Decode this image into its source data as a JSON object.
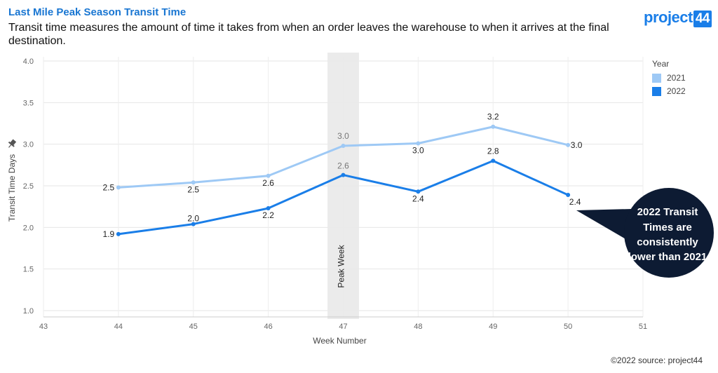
{
  "header": {
    "title": "Last Mile Peak Season Transit Time",
    "subtitle": "Transit time measures the amount of time it takes from when an order leaves the warehouse to when it arrives at the final destination."
  },
  "logo": {
    "text": "project",
    "number": "44"
  },
  "footer": {
    "source": "©2022 source: project44"
  },
  "colors": {
    "accent": "#1976d2",
    "series_2021": "#9ec9f5",
    "series_2022": "#1a7ee8",
    "callout": "#0d1b33"
  },
  "icons": {
    "ylabel_icon": "pin-icon"
  },
  "chart_data": {
    "type": "line",
    "xlabel": "Week Number",
    "ylabel": "Transit Time Days",
    "xlim": [
      43,
      51
    ],
    "ylim": [
      1.0,
      4.0
    ],
    "xticks": [
      43,
      44,
      45,
      46,
      47,
      48,
      49,
      50,
      51
    ],
    "yticks": [
      "1.0",
      "1.5",
      "2.0",
      "2.5",
      "3.0",
      "3.5",
      "4.0"
    ],
    "grid": true,
    "legend": {
      "title": "Year",
      "placement": "right"
    },
    "x": [
      44,
      45,
      46,
      47,
      48,
      49,
      50
    ],
    "series": [
      {
        "name": "2021",
        "values": [
          2.48,
          2.54,
          2.62,
          2.98,
          3.01,
          3.21,
          2.99
        ],
        "labels": [
          "2.5",
          "2.5",
          "2.6",
          "3.0",
          "3.0",
          "3.2",
          "3.0"
        ]
      },
      {
        "name": "2022",
        "values": [
          1.92,
          2.04,
          2.23,
          2.63,
          2.43,
          2.8,
          2.39
        ],
        "labels": [
          "1.9",
          "2.0",
          "2.2",
          "2.6",
          "2.4",
          "2.8",
          "2.4"
        ]
      }
    ],
    "annotations": {
      "peak_week": {
        "x": 47,
        "label": "Peak Week"
      },
      "callout": {
        "text": "2022 Transit Times are consistently lower than 2021"
      }
    }
  }
}
